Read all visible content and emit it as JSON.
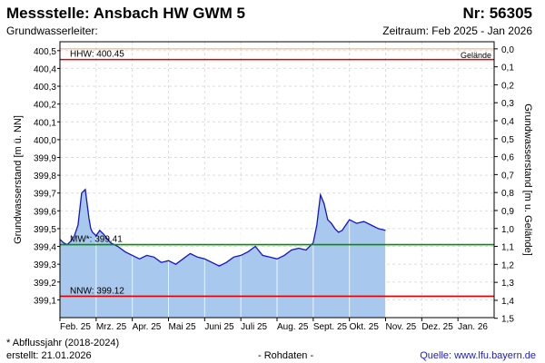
{
  "header": {
    "title": "Messstelle: Ansbach HW GWM 5",
    "station_no": "Nr: 56305",
    "subtitle": "Grundwasserleiter:",
    "period": "Zeitraum: Feb 2025 - Jan 2026"
  },
  "footer": {
    "note": "* Abflussjahr (2018-2024)",
    "created": "erstellt:  21.01.2026",
    "rawdata": "- Rohdaten -",
    "source": "Quelle: www.lfu.bayern.de"
  },
  "colors": {
    "fill": "#a8c8ee",
    "line": "#1414c8",
    "hhw": "#e00000",
    "nnw": "#e00000",
    "mw": "#009000",
    "gelaende": "#f2a070"
  },
  "chart_data": {
    "type": "area",
    "ylabel": "Grundwasserstand [m ü. NN]",
    "y2label": "Grundwasserstand [m u. Gelände]",
    "ylim": [
      399.0,
      400.55
    ],
    "y_ticks": [
      "400,5",
      "400,4",
      "400,3",
      "400,2",
      "400,1",
      "400,0",
      "399,9",
      "399,8",
      "399,7",
      "399,6",
      "399,5",
      "399,4",
      "399,3",
      "399,2",
      "399,1"
    ],
    "y2_ticks": [
      "0,0",
      "0,1",
      "0,2",
      "0,3",
      "0,4",
      "0,5",
      "0,6",
      "0,7",
      "0,8",
      "0,9",
      "1,0",
      "1,1",
      "1,2",
      "1,3",
      "1,4",
      "1,5"
    ],
    "months": [
      "Feb. 25",
      "Mrz. 25",
      "Apr. 25",
      "Mai 25",
      "Juni 25",
      "Juli 25",
      "Aug. 25",
      "Sept. 25",
      "Okt. 25",
      "Nov. 25",
      "Dez. 25",
      "Jan. 26"
    ],
    "gelaende": 400.51,
    "reference_lines": [
      {
        "label": "HHW: 400.45",
        "value": 400.45
      },
      {
        "label": "MW*: 399.41",
        "value": 399.41
      },
      {
        "label": "NNW: 399.12",
        "value": 399.12
      }
    ],
    "gelaende_label": "Gelände",
    "series": [
      {
        "x": [
          0,
          0.1,
          0.2,
          0.3,
          0.4,
          0.5,
          0.6,
          0.7,
          0.75,
          0.8,
          0.85,
          0.9,
          1.0,
          1.1,
          1.2,
          1.4,
          1.6,
          1.8,
          2.0,
          2.2,
          2.4,
          2.6,
          2.8,
          3.0,
          3.2,
          3.4,
          3.6,
          3.8,
          4.0,
          4.2,
          4.4,
          4.6,
          4.8,
          5.0,
          5.2,
          5.4,
          5.6,
          5.8,
          6.0,
          6.2,
          6.4,
          6.6,
          6.8,
          7.0,
          7.05,
          7.1,
          7.2,
          7.3,
          7.4,
          7.5,
          7.6,
          7.7,
          7.8,
          7.9,
          8.0,
          8.2,
          8.4,
          8.6,
          8.8,
          9.0
        ],
        "values": [
          399.44,
          399.42,
          399.41,
          399.43,
          399.46,
          399.52,
          399.7,
          399.72,
          399.64,
          399.56,
          399.5,
          399.48,
          399.46,
          399.49,
          399.47,
          399.42,
          399.4,
          399.37,
          399.35,
          399.33,
          399.35,
          399.34,
          399.31,
          399.32,
          399.3,
          399.33,
          399.36,
          399.34,
          399.33,
          399.31,
          399.29,
          399.31,
          399.34,
          399.35,
          399.37,
          399.4,
          399.35,
          399.34,
          399.33,
          399.35,
          399.38,
          399.39,
          399.38,
          399.42,
          399.47,
          399.52,
          399.69,
          399.64,
          399.55,
          399.53,
          399.5,
          399.48,
          399.49,
          399.52,
          399.55,
          399.53,
          399.54,
          399.52,
          399.5,
          399.49
        ]
      }
    ]
  }
}
